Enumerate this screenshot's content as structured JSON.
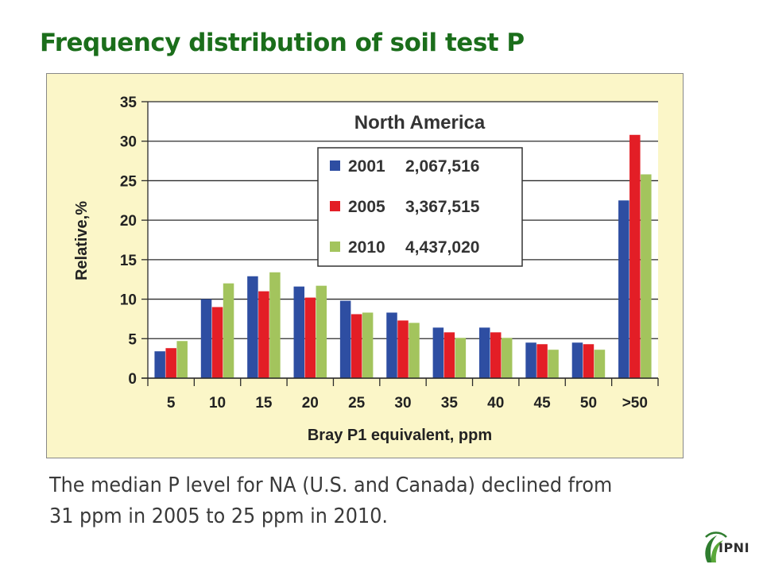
{
  "slide": {
    "title": "Frequency distribution of soil test P",
    "caption_line1": "The median P level for NA (U.S. and Canada) declined from",
    "caption_line2": "31 ppm in 2005 to 25 ppm in 2010.",
    "logo_text": "IPNI"
  },
  "colors": {
    "title": "#1b6e1b",
    "panel_background": "#fbf6c8",
    "series_2001": "#2e4ea2",
    "series_2005": "#e31e26",
    "series_2010": "#a3c45d"
  },
  "chart_data": {
    "type": "bar",
    "title": "North America",
    "xlabel": "Bray P1 equivalent, ppm",
    "ylabel": "Relative,%",
    "ylim": [
      0,
      35
    ],
    "yticks": [
      0,
      5,
      10,
      15,
      20,
      25,
      30,
      35
    ],
    "grid": true,
    "legend_position": "top-center",
    "categories": [
      "5",
      "10",
      "15",
      "20",
      "25",
      "30",
      "35",
      "40",
      "45",
      "50",
      ">50"
    ],
    "series": [
      {
        "name": "2001",
        "count": "2,067,516",
        "color": "#2e4ea2",
        "values": [
          3.4,
          10.0,
          12.9,
          11.6,
          9.8,
          8.3,
          6.4,
          6.4,
          4.5,
          4.5,
          22.5
        ]
      },
      {
        "name": "2005",
        "count": "3,367,515",
        "color": "#e31e26",
        "values": [
          3.8,
          9.0,
          11.0,
          10.2,
          8.1,
          7.3,
          5.8,
          5.8,
          4.3,
          4.3,
          30.8
        ]
      },
      {
        "name": "2010",
        "count": "4,437,020",
        "color": "#a3c45d",
        "values": [
          4.7,
          12.0,
          13.4,
          11.7,
          8.3,
          7.0,
          5.1,
          5.1,
          3.6,
          3.6,
          25.8
        ]
      }
    ]
  }
}
